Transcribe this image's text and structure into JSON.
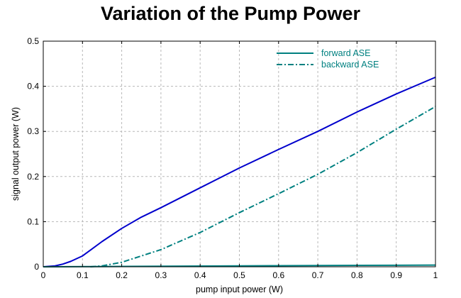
{
  "chart_data": {
    "type": "line",
    "title": "Variation of the Pump Power",
    "xlabel": "pump input power (W)",
    "ylabel": "signal output power (W)",
    "xlim": [
      0,
      1
    ],
    "ylim": [
      0,
      0.5
    ],
    "xticks": [
      "0",
      "0.1",
      "0.2",
      "0.3",
      "0.4",
      "0.5",
      "0.6",
      "0.7",
      "0.8",
      "0.9",
      "1"
    ],
    "yticks": [
      "0",
      "0.1",
      "0.2",
      "0.3",
      "0.4",
      "0.5"
    ],
    "grid": true,
    "legend_position": "top-right",
    "series": [
      {
        "name": "",
        "color": "#0000cc",
        "style": "solid",
        "x": [
          0,
          0.03,
          0.05,
          0.07,
          0.1,
          0.15,
          0.2,
          0.25,
          0.3,
          0.35,
          0.4,
          0.5,
          0.6,
          0.7,
          0.8,
          0.9,
          1.0
        ],
        "y": [
          0,
          0.002,
          0.006,
          0.012,
          0.024,
          0.056,
          0.085,
          0.11,
          0.131,
          0.153,
          0.175,
          0.219,
          0.26,
          0.3,
          0.343,
          0.383,
          0.42
        ]
      },
      {
        "name": "forward ASE",
        "color": "#008080",
        "style": "solid",
        "x": [
          0,
          0.1,
          0.2,
          0.3,
          0.4,
          0.5,
          0.6,
          0.7,
          0.8,
          0.9,
          1.0
        ],
        "y": [
          0,
          0.0003,
          0.0008,
          0.0012,
          0.0016,
          0.002,
          0.0024,
          0.0028,
          0.0031,
          0.0034,
          0.0037
        ]
      },
      {
        "name": "backward ASE",
        "color": "#008080",
        "style": "dashdot",
        "x": [
          0.12,
          0.15,
          0.2,
          0.25,
          0.3,
          0.35,
          0.4,
          0.5,
          0.6,
          0.7,
          0.8,
          0.9,
          1.0
        ],
        "y": [
          0,
          0.002,
          0.01,
          0.024,
          0.038,
          0.057,
          0.076,
          0.12,
          0.162,
          0.205,
          0.253,
          0.305,
          0.355
        ]
      }
    ]
  }
}
